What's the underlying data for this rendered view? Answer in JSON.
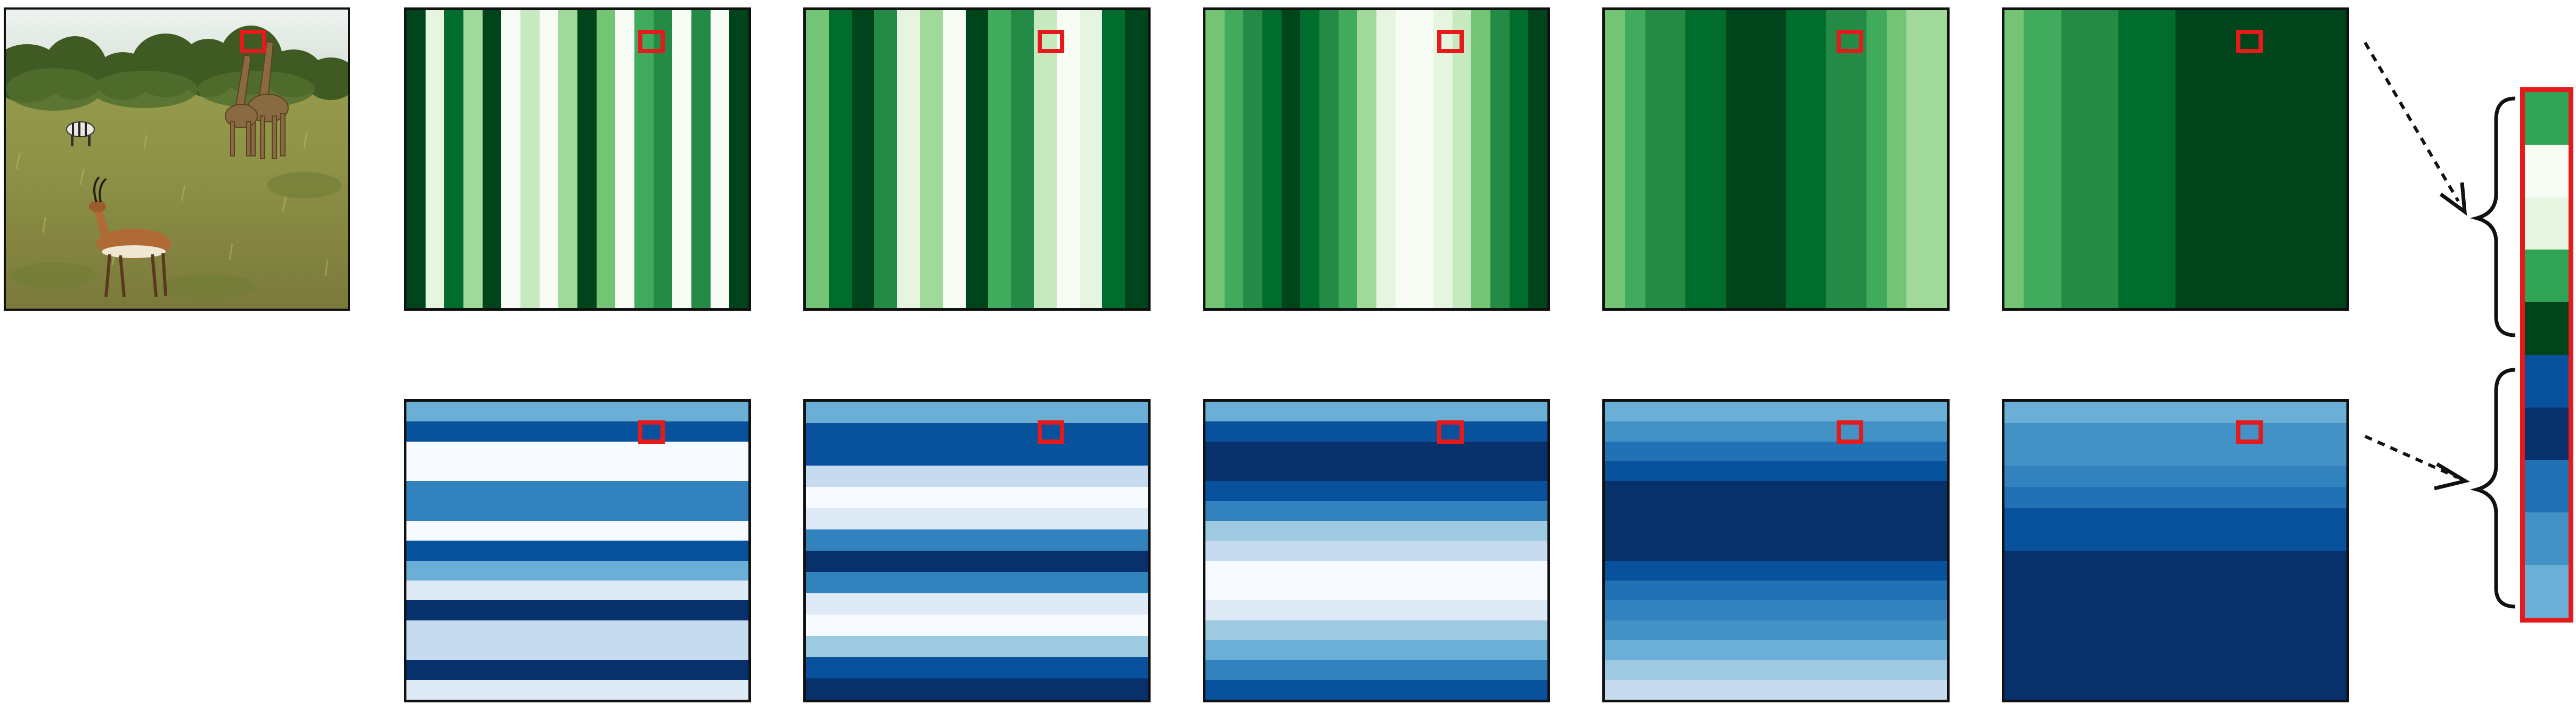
{
  "colors": {
    "marker": "#e41a1c",
    "frame": "#111111",
    "greens_row_panels": [
      [
        "#00441b",
        "#e5f5e0",
        "#006d2c",
        "#a1d99b",
        "#00441b",
        "#f7fcf5",
        "#c7e9c0",
        "#f7fcf5",
        "#a1d99b",
        "#00441b",
        "#74c476",
        "#f7fcf5",
        "#41ab5d",
        "#238b45",
        "#f7fcf5",
        "#238b45",
        "#f7fcf5",
        "#00441b"
      ],
      [
        "#74c476",
        "#006d2c",
        "#00441b",
        "#238b45",
        "#e5f5e0",
        "#a1d99b",
        "#f7fcf5",
        "#00441b",
        "#41ab5d",
        "#238b45",
        "#c7e9c0",
        "#f7fcf5",
        "#e5f5e0",
        "#006d2c",
        "#00441b"
      ],
      [
        "#74c476",
        "#41ab5d",
        "#238b45",
        "#006d2c",
        "#00441b",
        "#006d2c",
        "#238b45",
        "#41ab5d",
        "#a1d99b",
        "#e5f5e0",
        "#f7fcf5",
        "#f7fcf5",
        "#e5f5e0",
        "#c7e9c0",
        "#74c476",
        "#238b45",
        "#006d2c",
        "#00441b"
      ],
      [
        "#74c476",
        "#41ab5d",
        "#238b45",
        "#238b45",
        "#006d2c",
        "#006d2c",
        "#00441b",
        "#00441b",
        "#00441b",
        "#006d2c",
        "#006d2c",
        "#238b45",
        "#238b45",
        "#41ab5d",
        "#74c476",
        "#a1d99b",
        "#a1d99b"
      ],
      [
        "#74c476",
        "#41ab5d",
        "#41ab5d",
        "#238b45",
        "#238b45",
        "#238b45",
        "#006d2c",
        "#006d2c",
        "#006d2c",
        "#00441b",
        "#00441b",
        "#00441b",
        "#00441b",
        "#00441b",
        "#00441b",
        "#00441b",
        "#00441b",
        "#00441b"
      ]
    ],
    "blues_row_panels": [
      [
        "#6baed6",
        "#08519c",
        "#f7fbff",
        "#f7fbff",
        "#3182bd",
        "#3182bd",
        "#f7fbff",
        "#08519c",
        "#6baed6",
        "#deebf7",
        "#08306b",
        "#c6dbef",
        "#c6dbef",
        "#08306b",
        "#deebf7"
      ],
      [
        "#6baed6",
        "#08519c",
        "#08519c",
        "#c6dbef",
        "#f7fbff",
        "#deebf7",
        "#3182bd",
        "#08306b",
        "#3182bd",
        "#deebf7",
        "#f7fbff",
        "#9ecae1",
        "#08519c",
        "#08306b"
      ],
      [
        "#6baed6",
        "#08519c",
        "#08306b",
        "#08306b",
        "#08519c",
        "#3182bd",
        "#9ecae1",
        "#c6dbef",
        "#f7fbff",
        "#f7fbff",
        "#deebf7",
        "#9ecae1",
        "#6baed6",
        "#3182bd",
        "#08519c"
      ],
      [
        "#6baed6",
        "#4292c6",
        "#2171b5",
        "#08519c",
        "#08306b",
        "#08306b",
        "#08306b",
        "#08306b",
        "#08519c",
        "#2171b5",
        "#3182bd",
        "#4292c6",
        "#6baed6",
        "#9ecae1",
        "#c6dbef"
      ],
      [
        "#6baed6",
        "#4292c6",
        "#4292c6",
        "#3182bd",
        "#2171b5",
        "#08519c",
        "#08519c",
        "#08306b",
        "#08306b",
        "#08306b",
        "#08306b",
        "#08306b",
        "#08306b",
        "#08306b"
      ]
    ],
    "vector_cells": [
      "#31a354",
      "#f7fcf5",
      "#e5f5e0",
      "#31a354",
      "#00441b",
      "#08519c",
      "#08306b",
      "#2171b5",
      "#4292c6",
      "#6baed6"
    ]
  },
  "icons": {
    "photo": "savanna-wildlife-photo",
    "arrow": "dotted-arrow-icon",
    "brace": "curly-brace-icon"
  }
}
